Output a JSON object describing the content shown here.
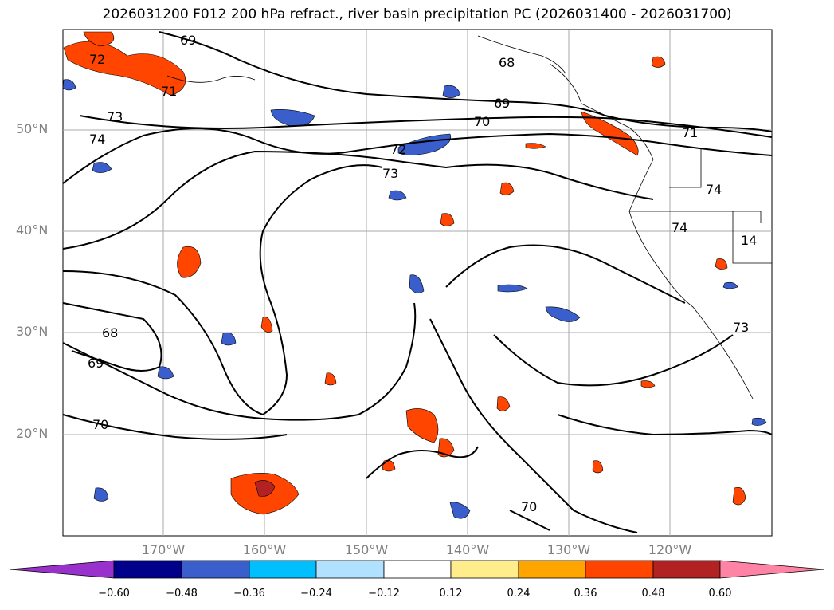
{
  "title": "2026031200 F012 200 hPa refract., river basin precipitation PC (2026031400 - 2026031700)",
  "lat_labels": [
    "50°N",
    "40°N",
    "30°N",
    "20°N"
  ],
  "lon_labels": [
    "170°W",
    "160°W",
    "150°W",
    "140°W",
    "130°W",
    "120°W"
  ],
  "contour_labels": [
    "69",
    "72",
    "71",
    "73",
    "74",
    "68",
    "69",
    "70",
    "72",
    "73",
    "71",
    "74",
    "74",
    "14",
    "73",
    "68",
    "69",
    "70",
    "70"
  ],
  "colorbar": {
    "ticks": [
      "−0.60",
      "−0.48",
      "−0.36",
      "−0.24",
      "−0.12",
      "0.12",
      "0.24",
      "0.36",
      "0.48",
      "0.60"
    ],
    "colors": [
      "#9932CC",
      "#00008B",
      "#3A5FCD",
      "#00BFFF",
      "#B0E2FF",
      "#FFFFFF",
      "#FFEC8B",
      "#FFA500",
      "#FF4500",
      "#B22222",
      "#FF83A5"
    ]
  }
}
